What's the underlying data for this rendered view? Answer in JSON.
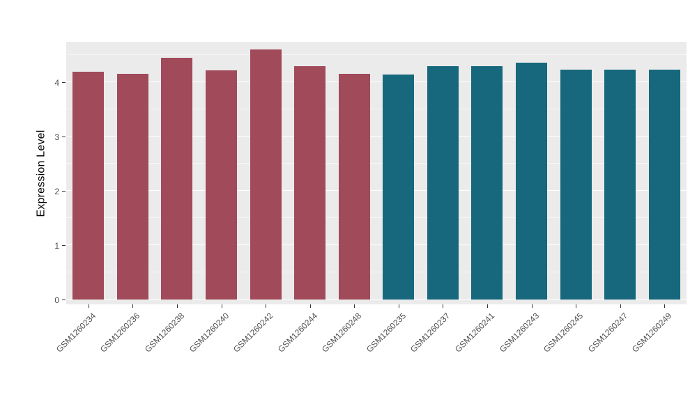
{
  "figure": {
    "background": "#FFFFFF",
    "panel_background": "#EBEBEB",
    "gridline_color": "#FFFFFF",
    "tick_color": "#333333",
    "tick_label_color": "#4D4D4D",
    "axis_title_color": "#000000"
  },
  "chart_data": {
    "type": "bar",
    "title": "",
    "xlabel": "",
    "ylabel": "Expression Level",
    "ylim": [
      0,
      4.74
    ],
    "yticks": [
      0,
      1,
      2,
      3,
      4
    ],
    "grid": "major and minor horizontal white gridlines on gray panel",
    "legend": "none",
    "categories": [
      "GSM1260234",
      "GSM1260236",
      "GSM1260238",
      "GSM1260240",
      "GSM1260242",
      "GSM1260244",
      "GSM1260248",
      "GSM1260235",
      "GSM1260237",
      "GSM1260241",
      "GSM1260243",
      "GSM1260245",
      "GSM1260247",
      "GSM1260249"
    ],
    "values": [
      4.19,
      4.16,
      4.45,
      4.22,
      4.6,
      4.29,
      4.16,
      4.14,
      4.3,
      4.3,
      4.36,
      4.23,
      4.23,
      4.23
    ],
    "groups": [
      "maroon",
      "maroon",
      "maroon",
      "maroon",
      "maroon",
      "maroon",
      "maroon",
      "teal",
      "teal",
      "teal",
      "teal",
      "teal",
      "teal",
      "teal"
    ],
    "group_colors": {
      "maroon": "#A04A5A",
      "teal": "#17687D"
    }
  }
}
